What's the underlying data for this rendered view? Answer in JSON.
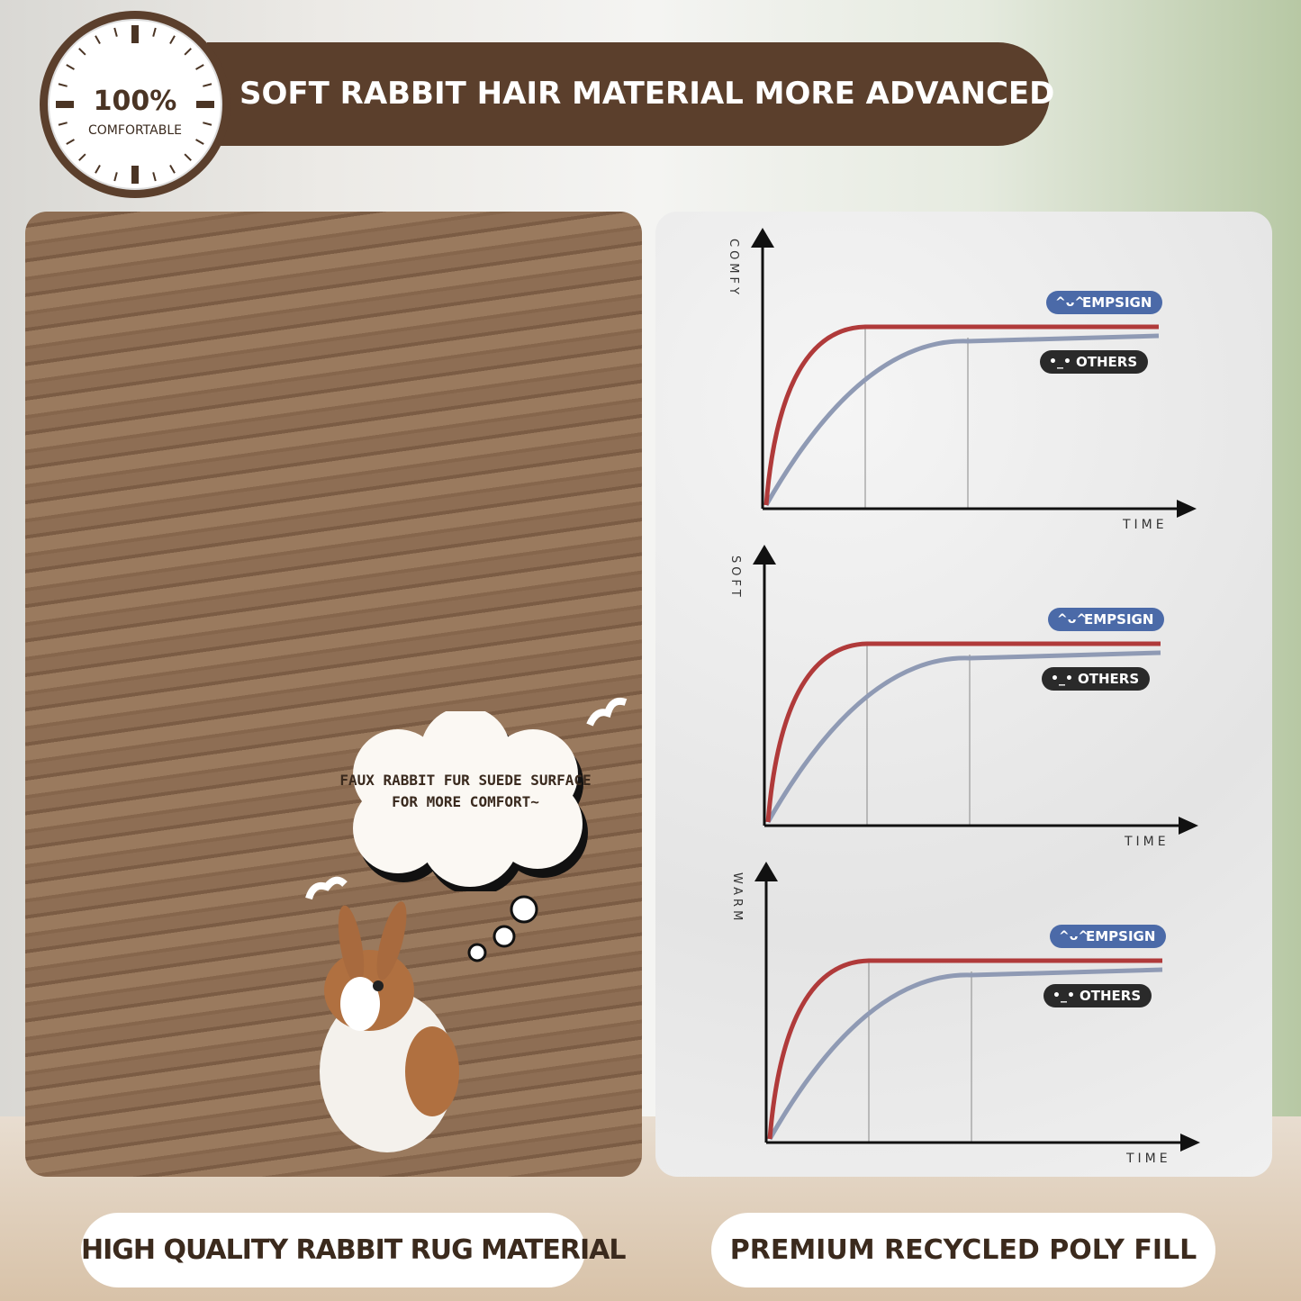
{
  "badge": {
    "value": "100%",
    "label": "COMFORTABLE"
  },
  "header": {
    "title": "SOFT RABBIT HAIR MATERIAL MORE ADVANCED"
  },
  "left_panel": {
    "bubble_line1": "FAUX RABBIT FUR SUEDE SURFACE",
    "bubble_line2": "FOR MORE COMFORT~"
  },
  "charts": [
    {
      "ylabel": "COMFY",
      "xlabel": "TIME",
      "legend": [
        {
          "name": "EMPSIGN",
          "icon": "laughing-face-icon"
        },
        {
          "name": "OTHERS",
          "icon": "meh-face-icon"
        }
      ]
    },
    {
      "ylabel": "SOFT",
      "xlabel": "TIME",
      "legend": [
        {
          "name": "EMPSIGN",
          "icon": "laughing-face-icon"
        },
        {
          "name": "OTHERS",
          "icon": "meh-face-icon"
        }
      ]
    },
    {
      "ylabel": "WARM",
      "xlabel": "TIME",
      "legend": [
        {
          "name": "EMPSIGN",
          "icon": "laughing-face-icon"
        },
        {
          "name": "OTHERS",
          "icon": "meh-face-icon"
        }
      ]
    }
  ],
  "colors": {
    "brand_brown": "#5b3f2c",
    "empsign_line": "#b03a3a",
    "others_line": "#8f9ab4",
    "empsign_tag": "#4b6aa8",
    "others_tag": "#2a2a2a"
  },
  "footer": {
    "left": "HIGH QUALITY RABBIT RUG MATERIAL",
    "right": "PREMIUM RECYCLED POLY FILL"
  }
}
